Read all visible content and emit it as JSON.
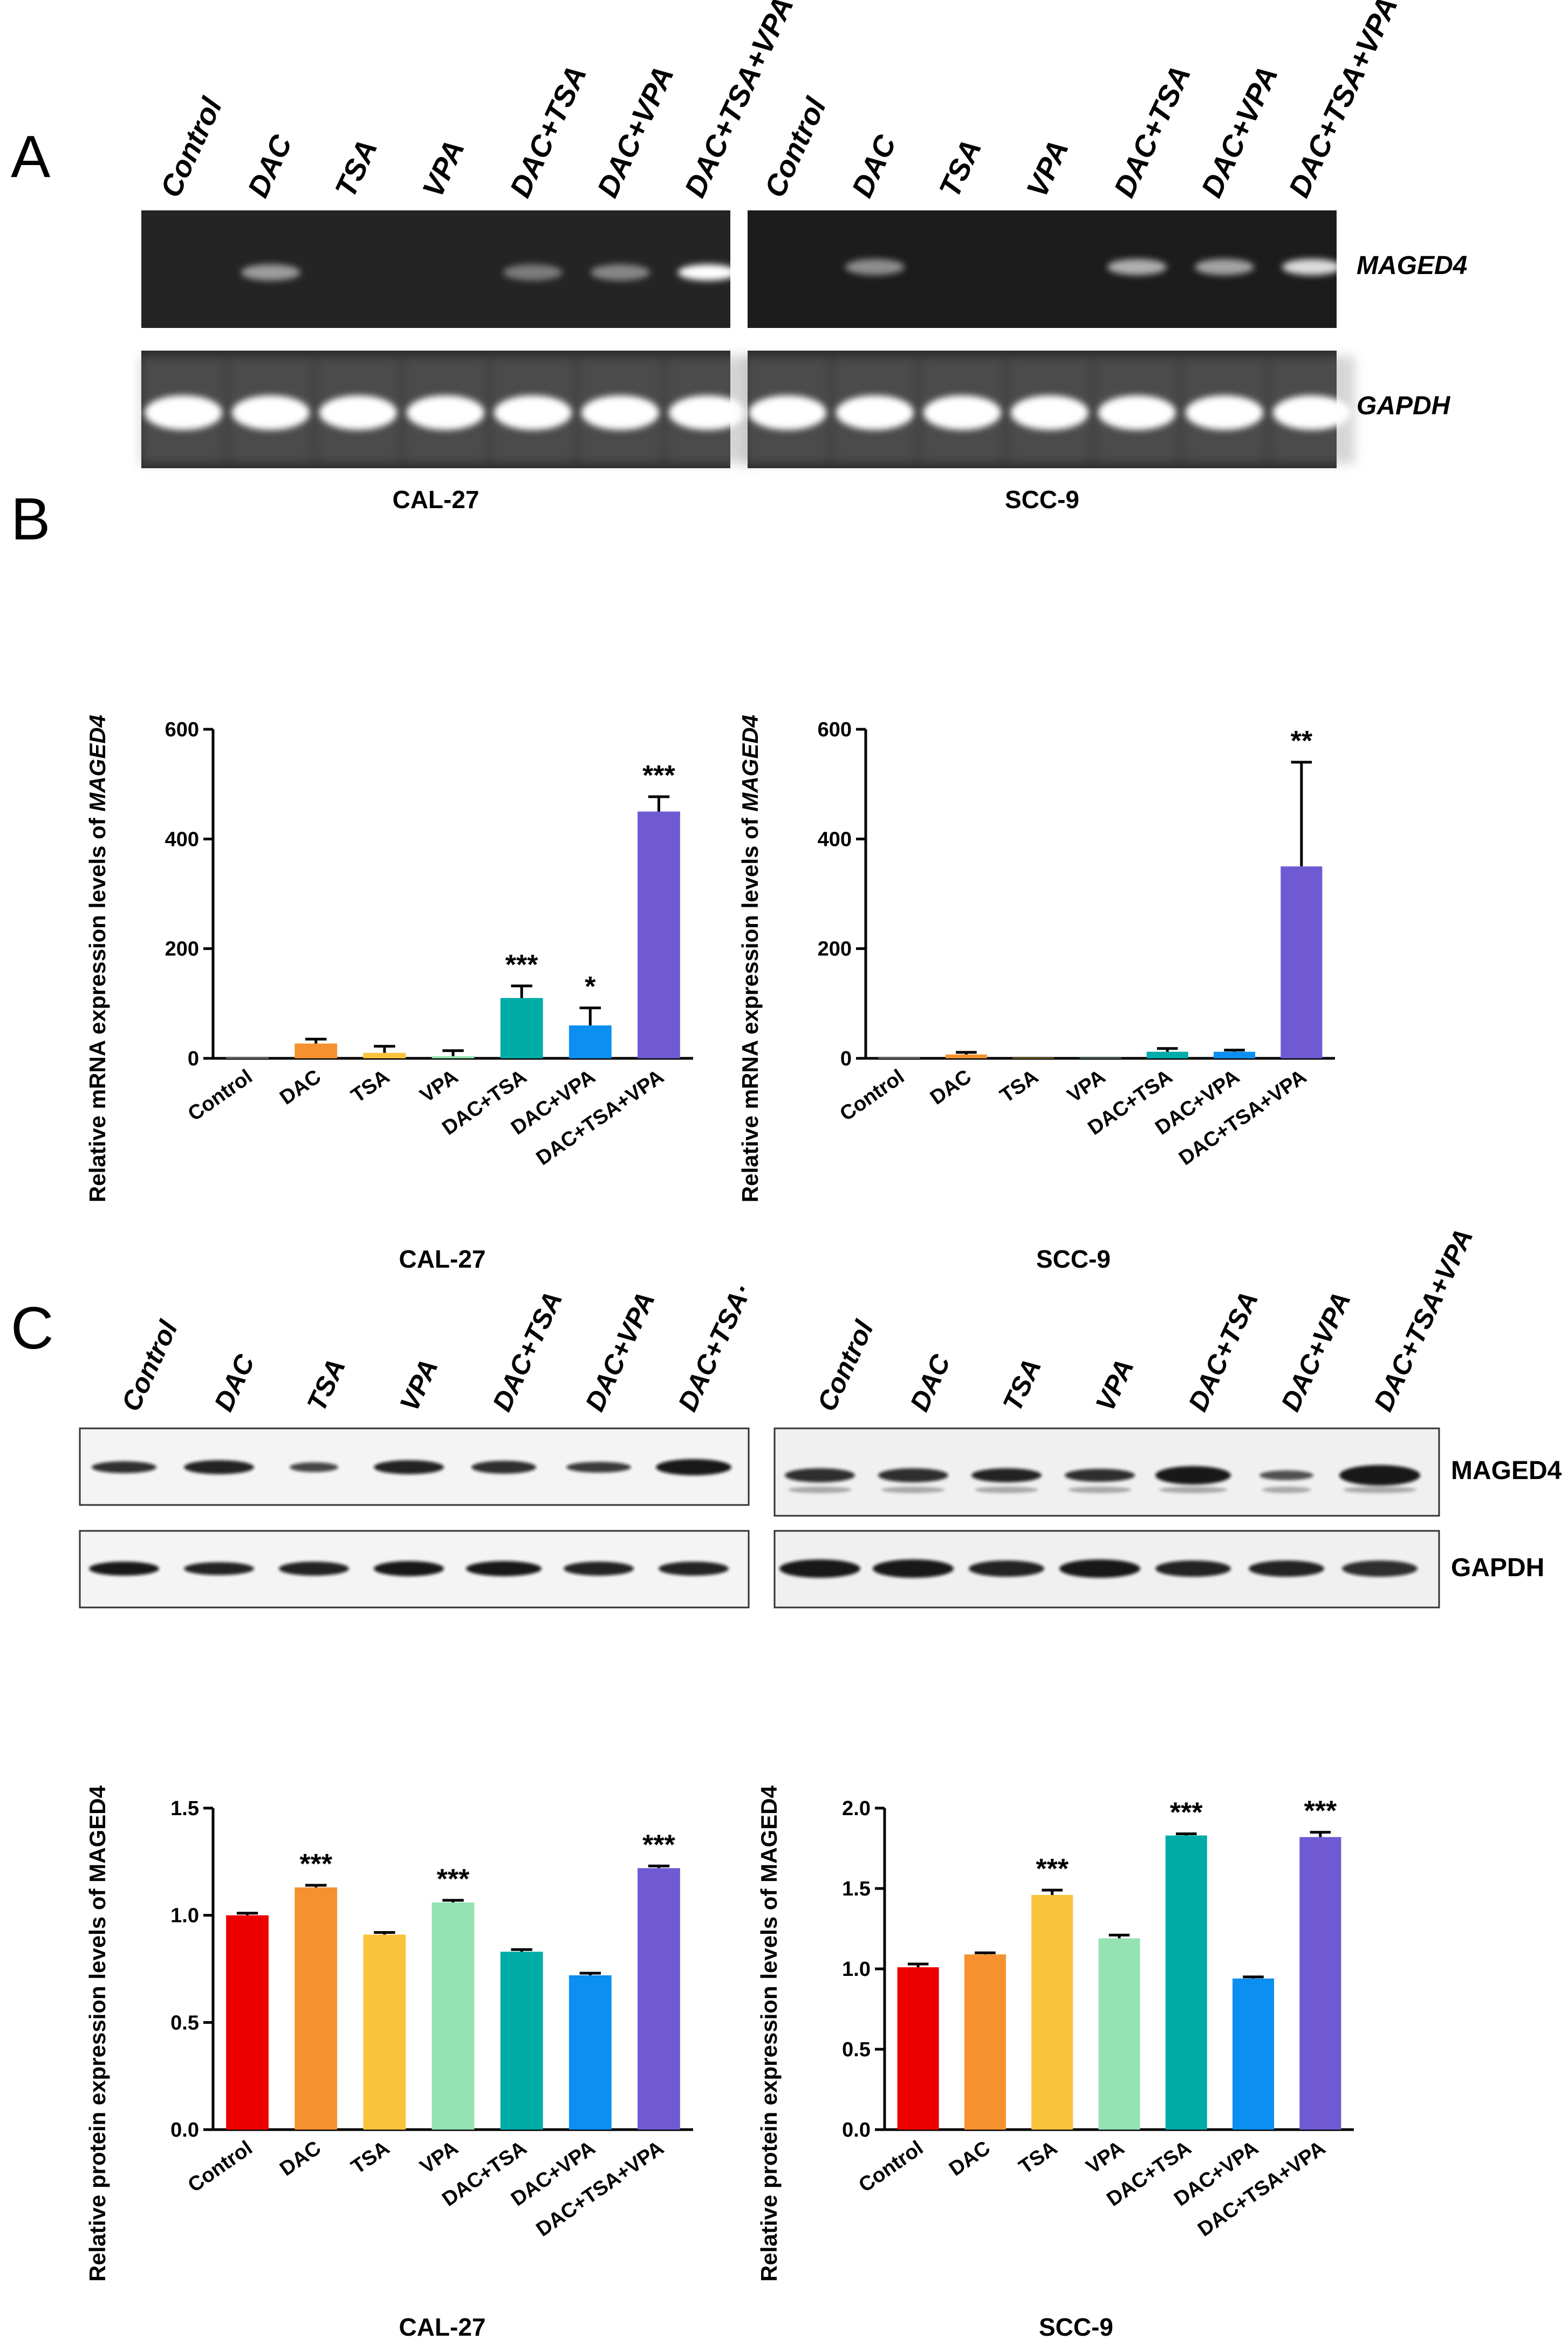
{
  "panels": {
    "a_letter": "A",
    "b_letter": "B",
    "c_letter": "C"
  },
  "lanes": [
    "Control",
    "DAC",
    "TSA",
    "VPA",
    "DAC+TSA",
    "DAC+VPA",
    "DAC+TSA+VPA"
  ],
  "lanes_c_left": [
    "Control",
    "DAC",
    "TSA",
    "VPA",
    "DAC+TSA",
    "DAC+VPA",
    "DAC+TSA·"
  ],
  "gel": {
    "band_labels": [
      "MAGED4",
      "GAPDH"
    ],
    "cell_lines": [
      "CAL-27",
      "SCC-9"
    ]
  },
  "western": {
    "band_labels": [
      "MAGED4",
      "GAPDH"
    ]
  },
  "colors": {
    "rt_bar": [
      "#ffffff",
      "#f5922f",
      "#f9c33c",
      "#95e2b3",
      "#00aca8",
      "#0b8ff0",
      "#6f5ad3"
    ],
    "protein_bar": [
      "#ee0000",
      "#f5922f",
      "#f9c33c",
      "#95e2b3",
      "#00aca8",
      "#0b8ff0",
      "#6f5ad3"
    ]
  },
  "chart_data": [
    {
      "type": "bar",
      "title": "CAL-27",
      "ylabel_prefix": "Relative mRNA expression levels of ",
      "ylabel_italic": "MAGED4",
      "categories": [
        "Control",
        "DAC",
        "TSA",
        "VPA",
        "DAC+TSA",
        "DAC+VPA",
        "DAC+TSA+VPA"
      ],
      "values": [
        1,
        27,
        10,
        4,
        110,
        60,
        450
      ],
      "errors": [
        0,
        8,
        12,
        10,
        22,
        32,
        27
      ],
      "significance": [
        "",
        "",
        "",
        "",
        "***",
        "*",
        "***"
      ],
      "ylim": [
        0,
        600
      ],
      "yticks": [
        0,
        200,
        400,
        600
      ],
      "ytick_labels": [
        "0",
        "200",
        "400",
        "600"
      ]
    },
    {
      "type": "bar",
      "title": "SCC-9",
      "ylabel_prefix": "Relative mRNA expression levels of ",
      "ylabel_italic": "MAGED4",
      "categories": [
        "Control",
        "DAC",
        "TSA",
        "VPA",
        "DAC+TSA",
        "DAC+VPA",
        "DAC+TSA+VPA"
      ],
      "values": [
        1,
        7,
        1,
        1,
        12,
        12,
        350
      ],
      "errors": [
        0,
        4,
        0,
        0,
        6,
        3,
        190
      ],
      "significance": [
        "",
        "",
        "",
        "",
        "",
        "",
        "**"
      ],
      "ylim": [
        0,
        600
      ],
      "yticks": [
        0,
        200,
        400,
        600
      ],
      "ytick_labels": [
        "0",
        "200",
        "400",
        "600"
      ]
    },
    {
      "type": "bar",
      "title": "CAL-27",
      "ylabel_prefix": "Relative protein expression levels of MAGED4",
      "ylabel_italic": "",
      "categories": [
        "Control",
        "DAC",
        "TSA",
        "VPA",
        "DAC+TSA",
        "DAC+VPA",
        "DAC+TSA+VPA"
      ],
      "values": [
        1.0,
        1.13,
        0.91,
        1.06,
        0.83,
        0.72,
        1.22
      ],
      "errors": [
        0.01,
        0.01,
        0.01,
        0.01,
        0.01,
        0.01,
        0.01
      ],
      "significance": [
        "",
        "***",
        "",
        "***",
        "",
        "",
        "***"
      ],
      "ylim": [
        0,
        1.5
      ],
      "yticks": [
        0,
        0.5,
        1.0,
        1.5
      ],
      "ytick_labels": [
        "0.0",
        "0.5",
        "1.0",
        "1.5"
      ]
    },
    {
      "type": "bar",
      "title": "SCC-9",
      "ylabel_prefix": "Relative protein expression levels of MAGED4",
      "ylabel_italic": "",
      "categories": [
        "Control",
        "DAC",
        "TSA",
        "VPA",
        "DAC+TSA",
        "DAC+VPA",
        "DAC+TSA+VPA"
      ],
      "values": [
        1.01,
        1.09,
        1.46,
        1.19,
        1.83,
        0.94,
        1.82
      ],
      "errors": [
        0.02,
        0.01,
        0.03,
        0.02,
        0.01,
        0.01,
        0.03
      ],
      "significance": [
        "",
        "",
        "***",
        "",
        "***",
        "",
        "***"
      ],
      "ylim": [
        0,
        2.0
      ],
      "yticks": [
        0,
        0.5,
        1.0,
        1.5,
        2.0
      ],
      "ytick_labels": [
        "0.0",
        "0.5",
        "1.0",
        "1.5",
        "2.0"
      ]
    }
  ]
}
